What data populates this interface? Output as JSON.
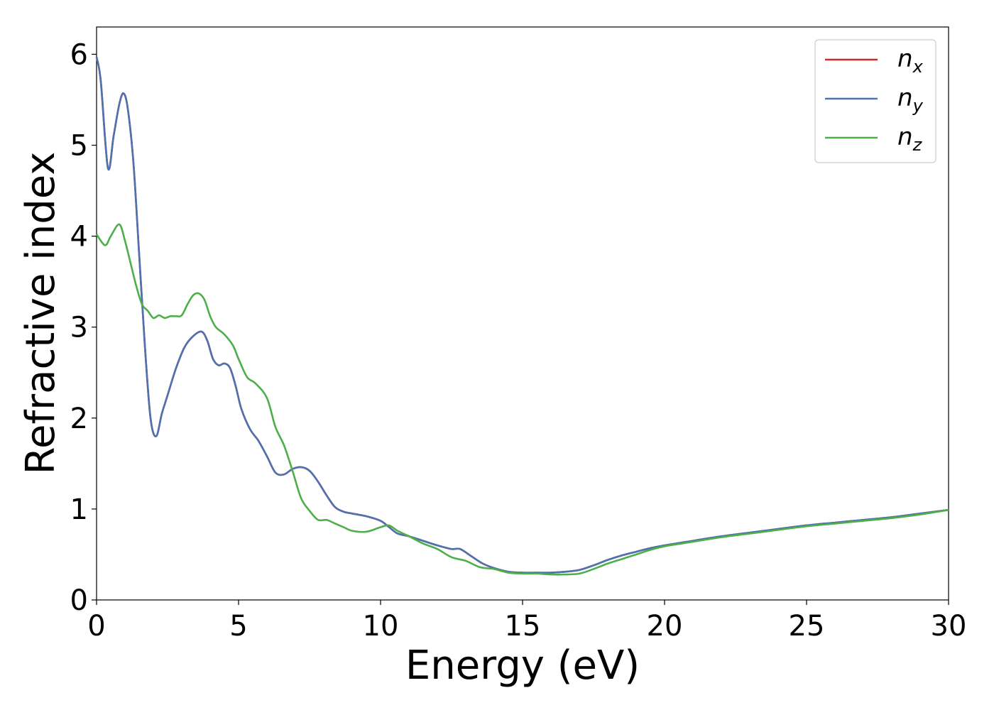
{
  "chart_data": {
    "type": "line",
    "title": "",
    "xlabel": "Energy (eV)",
    "ylabel": "Refractive index",
    "xlim": [
      0,
      30
    ],
    "ylim": [
      0,
      6.3
    ],
    "xticks": [
      0,
      5,
      10,
      15,
      20,
      25,
      30
    ],
    "yticks": [
      0,
      1,
      2,
      3,
      4,
      5,
      6
    ],
    "grid": false,
    "legend_position": "top-right",
    "series": [
      {
        "name": "n_x",
        "label_main": "n",
        "label_sub": "x",
        "color": "#d62728",
        "x": [
          0,
          0.15,
          0.4,
          0.6,
          0.8,
          0.95,
          1.1,
          1.3,
          1.5,
          1.7,
          1.9,
          2.1,
          2.3,
          2.5,
          2.8,
          3.1,
          3.4,
          3.7,
          3.9,
          4.1,
          4.3,
          4.5,
          4.7,
          4.9,
          5.1,
          5.4,
          5.7,
          6.0,
          6.3,
          6.6,
          6.9,
          7.2,
          7.5,
          7.8,
          8.1,
          8.4,
          8.7,
          9.0,
          9.5,
          10.0,
          10.3,
          10.6,
          11.0,
          11.5,
          12.0,
          12.5,
          12.8,
          13.2,
          13.6,
          14.0,
          14.5,
          15.0,
          15.5,
          16.0,
          16.5,
          17.0,
          17.5,
          18.0,
          18.5,
          19.0,
          19.5,
          20.0,
          21.0,
          22.0,
          23.0,
          24.0,
          25.0,
          26.0,
          27.0,
          28.0,
          29.0,
          30.0
        ],
        "y": [
          5.97,
          5.7,
          4.75,
          5.1,
          5.45,
          5.57,
          5.4,
          4.8,
          3.8,
          2.8,
          2.0,
          1.8,
          2.05,
          2.25,
          2.55,
          2.78,
          2.9,
          2.95,
          2.85,
          2.65,
          2.58,
          2.6,
          2.55,
          2.35,
          2.1,
          1.88,
          1.75,
          1.58,
          1.4,
          1.38,
          1.44,
          1.46,
          1.42,
          1.3,
          1.15,
          1.02,
          0.97,
          0.95,
          0.92,
          0.87,
          0.8,
          0.73,
          0.7,
          0.65,
          0.6,
          0.56,
          0.56,
          0.48,
          0.4,
          0.35,
          0.31,
          0.3,
          0.3,
          0.3,
          0.31,
          0.33,
          0.38,
          0.44,
          0.49,
          0.53,
          0.57,
          0.6,
          0.65,
          0.7,
          0.74,
          0.78,
          0.82,
          0.85,
          0.88,
          0.91,
          0.95,
          0.99
        ]
      },
      {
        "name": "n_y",
        "label_main": "n",
        "label_sub": "y",
        "color": "#4c72b0",
        "x": [
          0,
          0.15,
          0.4,
          0.6,
          0.8,
          0.95,
          1.1,
          1.3,
          1.5,
          1.7,
          1.9,
          2.1,
          2.3,
          2.5,
          2.8,
          3.1,
          3.4,
          3.7,
          3.9,
          4.1,
          4.3,
          4.5,
          4.7,
          4.9,
          5.1,
          5.4,
          5.7,
          6.0,
          6.3,
          6.6,
          6.9,
          7.2,
          7.5,
          7.8,
          8.1,
          8.4,
          8.7,
          9.0,
          9.5,
          10.0,
          10.3,
          10.6,
          11.0,
          11.5,
          12.0,
          12.5,
          12.8,
          13.2,
          13.6,
          14.0,
          14.5,
          15.0,
          15.5,
          16.0,
          16.5,
          17.0,
          17.5,
          18.0,
          18.5,
          19.0,
          19.5,
          20.0,
          21.0,
          22.0,
          23.0,
          24.0,
          25.0,
          26.0,
          27.0,
          28.0,
          29.0,
          30.0
        ],
        "y": [
          5.97,
          5.7,
          4.75,
          5.1,
          5.45,
          5.57,
          5.4,
          4.8,
          3.8,
          2.8,
          2.0,
          1.8,
          2.05,
          2.25,
          2.55,
          2.78,
          2.9,
          2.95,
          2.85,
          2.65,
          2.58,
          2.6,
          2.55,
          2.35,
          2.1,
          1.88,
          1.75,
          1.58,
          1.4,
          1.38,
          1.44,
          1.46,
          1.42,
          1.3,
          1.15,
          1.02,
          0.97,
          0.95,
          0.92,
          0.87,
          0.8,
          0.73,
          0.7,
          0.65,
          0.6,
          0.56,
          0.56,
          0.48,
          0.4,
          0.35,
          0.31,
          0.3,
          0.3,
          0.3,
          0.31,
          0.33,
          0.38,
          0.44,
          0.49,
          0.53,
          0.57,
          0.6,
          0.65,
          0.7,
          0.74,
          0.78,
          0.82,
          0.85,
          0.88,
          0.91,
          0.95,
          0.99
        ]
      },
      {
        "name": "n_z",
        "label_main": "n",
        "label_sub": "z",
        "color": "#4daf4a",
        "x": [
          0,
          0.3,
          0.5,
          0.8,
          1.0,
          1.2,
          1.4,
          1.6,
          1.8,
          2.0,
          2.2,
          2.4,
          2.6,
          2.8,
          3.0,
          3.2,
          3.4,
          3.6,
          3.8,
          4.0,
          4.2,
          4.5,
          4.8,
          5.0,
          5.3,
          5.6,
          6.0,
          6.3,
          6.6,
          6.9,
          7.2,
          7.5,
          7.8,
          8.1,
          8.4,
          8.7,
          9.0,
          9.5,
          10.0,
          10.3,
          10.6,
          11.0,
          11.5,
          12.0,
          12.5,
          13.0,
          13.5,
          14.0,
          14.5,
          15.0,
          15.5,
          16.0,
          16.5,
          17.0,
          17.5,
          18.0,
          18.5,
          19.0,
          19.5,
          20.0,
          21.0,
          22.0,
          23.0,
          24.0,
          25.0,
          26.0,
          27.0,
          28.0,
          29.0,
          30.0
        ],
        "y": [
          4.02,
          3.9,
          4.0,
          4.13,
          3.95,
          3.7,
          3.45,
          3.25,
          3.18,
          3.1,
          3.13,
          3.1,
          3.12,
          3.12,
          3.13,
          3.25,
          3.35,
          3.37,
          3.3,
          3.12,
          3.0,
          2.92,
          2.8,
          2.65,
          2.45,
          2.38,
          2.22,
          1.9,
          1.7,
          1.42,
          1.12,
          0.98,
          0.88,
          0.88,
          0.84,
          0.8,
          0.76,
          0.75,
          0.8,
          0.82,
          0.76,
          0.7,
          0.62,
          0.56,
          0.47,
          0.43,
          0.36,
          0.34,
          0.3,
          0.29,
          0.29,
          0.28,
          0.28,
          0.29,
          0.34,
          0.4,
          0.45,
          0.5,
          0.55,
          0.59,
          0.64,
          0.69,
          0.73,
          0.77,
          0.81,
          0.84,
          0.87,
          0.9,
          0.94,
          0.99
        ]
      }
    ]
  }
}
